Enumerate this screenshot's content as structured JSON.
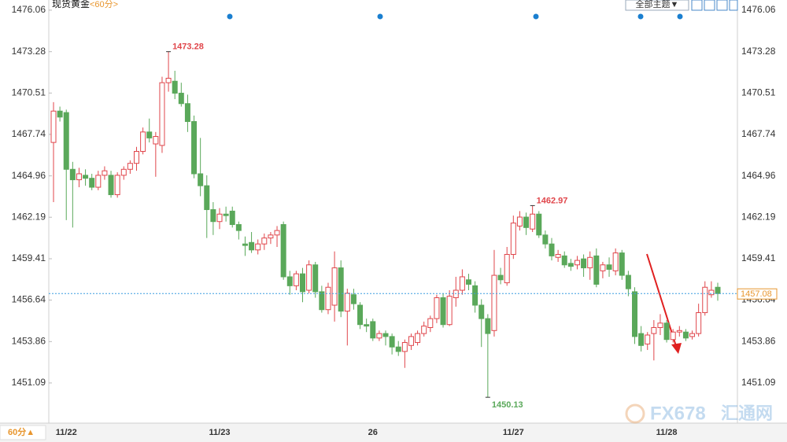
{
  "chart_data": {
    "type": "candlestick",
    "title": "现货黄金",
    "subtitle": "<60分>",
    "ylim": [
      1448.4,
      1476.74
    ],
    "yticks": [
      1476.06,
      1473.28,
      1470.51,
      1467.74,
      1464.96,
      1462.19,
      1459.41,
      1456.64,
      1453.86,
      1451.09
    ],
    "grid": false,
    "up_color": "#e0464b",
    "down_color": "#5aa85a",
    "last_price": 1457.08,
    "last_price_color": "#3a9ee0",
    "categories": [
      null,
      null,
      "11/22",
      null,
      null,
      null,
      null,
      null,
      null,
      null,
      null,
      null,
      null,
      null,
      null,
      null,
      null,
      null,
      null,
      null,
      null,
      null,
      null,
      null,
      null,
      null,
      "11/23",
      null,
      null,
      null,
      null,
      null,
      null,
      null,
      null,
      null,
      null,
      null,
      null,
      null,
      null,
      null,
      null,
      null,
      null,
      null,
      null,
      null,
      null,
      null,
      "26",
      null,
      null,
      null,
      null,
      null,
      null,
      null,
      null,
      null,
      null,
      null,
      null,
      null,
      null,
      null,
      null,
      null,
      null,
      null,
      null,
      null,
      "11/27",
      null,
      null,
      null,
      null,
      null,
      null,
      null,
      null,
      null,
      null,
      null,
      null,
      null,
      null,
      null,
      null,
      null,
      null,
      null,
      null,
      null,
      null,
      null,
      "11/28",
      null,
      null,
      null,
      null,
      null,
      null,
      null,
      null
    ],
    "candles": [
      [
        1467.2,
        1469.9,
        1463.2,
        1469.3
      ],
      [
        1469.3,
        1469.6,
        1468.6,
        1468.9
      ],
      [
        1469.2,
        1469.4,
        1462.0,
        1465.4
      ],
      [
        1465.4,
        1465.9,
        1461.5,
        1464.7
      ],
      [
        1464.7,
        1465.5,
        1464.2,
        1465.1
      ],
      [
        1465.0,
        1465.4,
        1464.3,
        1464.8
      ],
      [
        1464.8,
        1465.1,
        1464.0,
        1464.2
      ],
      [
        1464.2,
        1465.3,
        1464.0,
        1465.0
      ],
      [
        1465.0,
        1465.6,
        1464.7,
        1465.3
      ],
      [
        1465.0,
        1465.3,
        1463.5,
        1463.7
      ],
      [
        1463.7,
        1465.2,
        1463.5,
        1465.0
      ],
      [
        1465.0,
        1465.6,
        1464.7,
        1465.4
      ],
      [
        1465.4,
        1466.0,
        1465.1,
        1465.8
      ],
      [
        1465.8,
        1466.9,
        1465.3,
        1466.6
      ],
      [
        1466.6,
        1468.2,
        1466.4,
        1467.9
      ],
      [
        1467.9,
        1468.8,
        1467.2,
        1467.5
      ],
      [
        1467.1,
        1467.9,
        1464.9,
        1467.6
      ],
      [
        1467.0,
        1471.6,
        1466.5,
        1471.2
      ],
      [
        1471.2,
        1473.28,
        1470.6,
        1471.5
      ],
      [
        1471.3,
        1472.0,
        1470.1,
        1470.5
      ],
      [
        1470.5,
        1471.2,
        1469.6,
        1469.8
      ],
      [
        1469.8,
        1470.4,
        1467.9,
        1468.6
      ],
      [
        1468.6,
        1469.0,
        1464.8,
        1465.1
      ],
      [
        1465.1,
        1467.5,
        1463.6,
        1464.3
      ],
      [
        1464.3,
        1465.0,
        1460.8,
        1462.7
      ],
      [
        1462.7,
        1463.2,
        1461.0,
        1461.9
      ],
      [
        1461.9,
        1462.8,
        1461.4,
        1462.4
      ],
      [
        1462.4,
        1462.9,
        1461.9,
        1462.3
      ],
      [
        1462.6,
        1462.9,
        1461.5,
        1461.7
      ],
      [
        1461.7,
        1461.9,
        1460.7,
        1461.3
      ],
      [
        1460.4,
        1460.9,
        1459.6,
        1460.3
      ],
      [
        1460.5,
        1461.2,
        1459.8,
        1460.0
      ],
      [
        1460.0,
        1460.7,
        1459.7,
        1460.4
      ],
      [
        1460.4,
        1461.1,
        1460.0,
        1460.8
      ],
      [
        1460.8,
        1461.2,
        1460.4,
        1461.0
      ],
      [
        1461.0,
        1461.6,
        1460.2,
        1461.3
      ],
      [
        1461.7,
        1461.9,
        1458.0,
        1458.2
      ],
      [
        1458.2,
        1458.6,
        1457.0,
        1457.6
      ],
      [
        1457.6,
        1458.6,
        1457.3,
        1458.4
      ],
      [
        1458.4,
        1458.8,
        1456.5,
        1457.2
      ],
      [
        1457.3,
        1459.3,
        1457.1,
        1459.0
      ],
      [
        1459.0,
        1459.2,
        1456.8,
        1457.2
      ],
      [
        1457.2,
        1457.6,
        1455.8,
        1456.0
      ],
      [
        1456.0,
        1457.8,
        1455.7,
        1457.5
      ],
      [
        1456.3,
        1459.9,
        1455.2,
        1458.8
      ],
      [
        1458.8,
        1459.3,
        1455.5,
        1455.9
      ],
      [
        1455.9,
        1457.4,
        1453.6,
        1457.1
      ],
      [
        1457.0,
        1457.4,
        1456.0,
        1456.4
      ],
      [
        1456.3,
        1456.5,
        1454.7,
        1455.0
      ],
      [
        1455.0,
        1455.4,
        1454.5,
        1454.9
      ],
      [
        1455.2,
        1455.4,
        1453.9,
        1454.1
      ],
      [
        1454.1,
        1454.6,
        1453.9,
        1454.4
      ],
      [
        1454.4,
        1454.6,
        1453.6,
        1454.2
      ],
      [
        1454.2,
        1454.4,
        1453.0,
        1453.5
      ],
      [
        1453.5,
        1453.9,
        1452.9,
        1453.2
      ],
      [
        1453.2,
        1454.0,
        1452.1,
        1453.8
      ],
      [
        1453.6,
        1454.4,
        1453.3,
        1454.2
      ],
      [
        1453.8,
        1454.6,
        1453.6,
        1454.4
      ],
      [
        1454.4,
        1455.2,
        1454.2,
        1454.9
      ],
      [
        1454.8,
        1455.6,
        1454.5,
        1455.4
      ],
      [
        1455.4,
        1457.0,
        1455.1,
        1456.8
      ],
      [
        1456.8,
        1457.1,
        1454.8,
        1455.0
      ],
      [
        1455.0,
        1457.3,
        1454.9,
        1456.9
      ],
      [
        1456.8,
        1458.2,
        1456.2,
        1457.3
      ],
      [
        1457.3,
        1458.7,
        1457.0,
        1458.2
      ],
      [
        1458.0,
        1458.4,
        1457.3,
        1457.7
      ],
      [
        1457.6,
        1457.9,
        1455.8,
        1456.3
      ],
      [
        1456.3,
        1456.7,
        1453.5,
        1455.4
      ],
      [
        1455.4,
        1455.7,
        1450.13,
        1454.4
      ],
      [
        1454.6,
        1460.0,
        1454.2,
        1458.3
      ],
      [
        1458.3,
        1458.8,
        1457.7,
        1458.0
      ],
      [
        1457.8,
        1460.2,
        1457.6,
        1459.7
      ],
      [
        1459.7,
        1462.3,
        1459.4,
        1461.8
      ],
      [
        1461.6,
        1462.6,
        1461.3,
        1462.2
      ],
      [
        1462.2,
        1462.5,
        1461.0,
        1461.5
      ],
      [
        1461.4,
        1462.97,
        1461.2,
        1462.4
      ],
      [
        1462.4,
        1462.6,
        1460.8,
        1461.0
      ],
      [
        1461.0,
        1461.3,
        1460.1,
        1460.4
      ],
      [
        1460.4,
        1460.8,
        1459.3,
        1459.6
      ],
      [
        1459.5,
        1460.0,
        1459.2,
        1459.7
      ],
      [
        1459.6,
        1459.9,
        1458.8,
        1459.0
      ],
      [
        1459.1,
        1459.4,
        1458.6,
        1458.9
      ],
      [
        1459.0,
        1459.6,
        1458.7,
        1459.3
      ],
      [
        1459.4,
        1459.7,
        1458.2,
        1458.8
      ],
      [
        1458.8,
        1459.9,
        1458.0,
        1459.5
      ],
      [
        1459.6,
        1460.1,
        1457.5,
        1457.7
      ],
      [
        1458.6,
        1459.2,
        1458.1,
        1459.0
      ],
      [
        1459.0,
        1459.5,
        1458.2,
        1458.7
      ],
      [
        1458.6,
        1460.1,
        1458.3,
        1459.8
      ],
      [
        1459.8,
        1460.0,
        1458.0,
        1458.3
      ],
      [
        1458.3,
        1458.6,
        1456.9,
        1457.4
      ],
      [
        1457.2,
        1457.5,
        1453.7,
        1454.2
      ],
      [
        1454.4,
        1454.9,
        1453.2,
        1453.6
      ],
      [
        1453.7,
        1454.5,
        1453.3,
        1454.3
      ],
      [
        1454.4,
        1455.3,
        1452.6,
        1454.8
      ],
      [
        1454.8,
        1455.7,
        1454.3,
        1455.1
      ],
      [
        1455.1,
        1455.3,
        1453.8,
        1454.0
      ],
      [
        1454.0,
        1454.7,
        1453.8,
        1454.5
      ],
      [
        1454.5,
        1454.9,
        1454.2,
        1454.6
      ],
      [
        1454.5,
        1454.7,
        1453.9,
        1454.1
      ],
      [
        1454.2,
        1454.6,
        1454.0,
        1454.4
      ],
      [
        1454.4,
        1456.4,
        1454.2,
        1455.8
      ],
      [
        1455.8,
        1457.9,
        1455.6,
        1457.5
      ],
      [
        1457.0,
        1457.9,
        1456.8,
        1457.3
      ],
      [
        1457.5,
        1457.8,
        1456.6,
        1457.08
      ]
    ]
  },
  "ui": {
    "theme_button": "全部主题▼",
    "period_button": "60分▲",
    "watermark": "FX678",
    "watermark_cn": "汇通网"
  }
}
